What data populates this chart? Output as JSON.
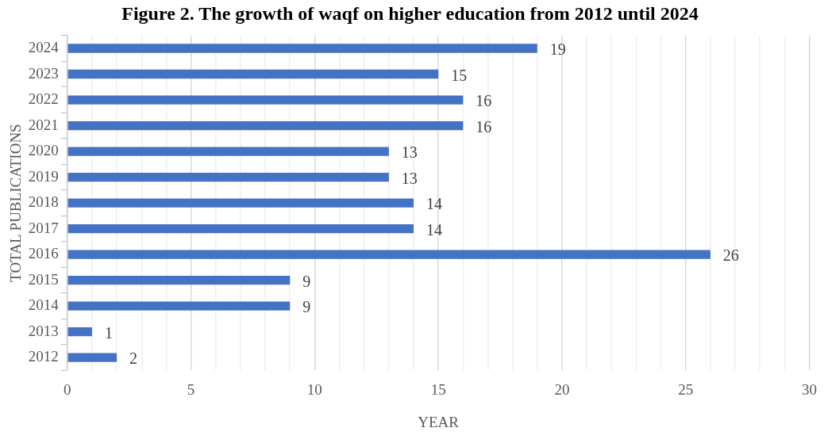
{
  "chart_data": {
    "type": "bar",
    "orientation": "horizontal",
    "title": "Figure 2. The growth of waqf on higher education from 2012 until 2024",
    "xlabel": "YEAR",
    "ylabel": "TOTAL PUBLICATIONS",
    "categories": [
      "2024",
      "2023",
      "2022",
      "2021",
      "2020",
      "2019",
      "2018",
      "2017",
      "2016",
      "2015",
      "2014",
      "2013",
      "2012"
    ],
    "values": [
      19,
      15,
      16,
      16,
      13,
      13,
      14,
      14,
      26,
      9,
      9,
      1,
      2
    ],
    "color": "#4472c4",
    "data_labels": true,
    "grid": true,
    "xlim": [
      0,
      30
    ],
    "xticks": [
      0,
      {
        "value": 1,
        "label": null
      },
      {
        "value": 2,
        "label": null
      },
      {
        "value": 3,
        "label": null
      },
      {
        "value": 4,
        "label": null
      },
      5,
      {
        "value": 6,
        "label": null
      },
      {
        "value": 7,
        "label": null
      },
      {
        "value": 8,
        "label": null
      },
      {
        "value": 9,
        "label": null
      },
      10,
      {
        "value": 11,
        "label": null
      },
      {
        "value": 12,
        "label": null
      },
      {
        "value": 13,
        "label": null
      },
      {
        "value": 14,
        "label": null
      },
      15,
      {
        "value": 16,
        "label": null
      },
      {
        "value": 17,
        "label": null
      },
      {
        "value": 18,
        "label": null
      },
      {
        "value": 19,
        "label": null
      },
      20,
      {
        "value": 21,
        "label": null
      },
      {
        "value": 22,
        "label": null
      },
      {
        "value": 23,
        "label": null
      },
      {
        "value": 24,
        "label": null
      },
      25,
      {
        "value": 26,
        "label": null
      },
      {
        "value": 27,
        "label": null
      },
      {
        "value": 28,
        "label": null
      },
      {
        "value": 29,
        "label": null
      },
      30
    ]
  }
}
